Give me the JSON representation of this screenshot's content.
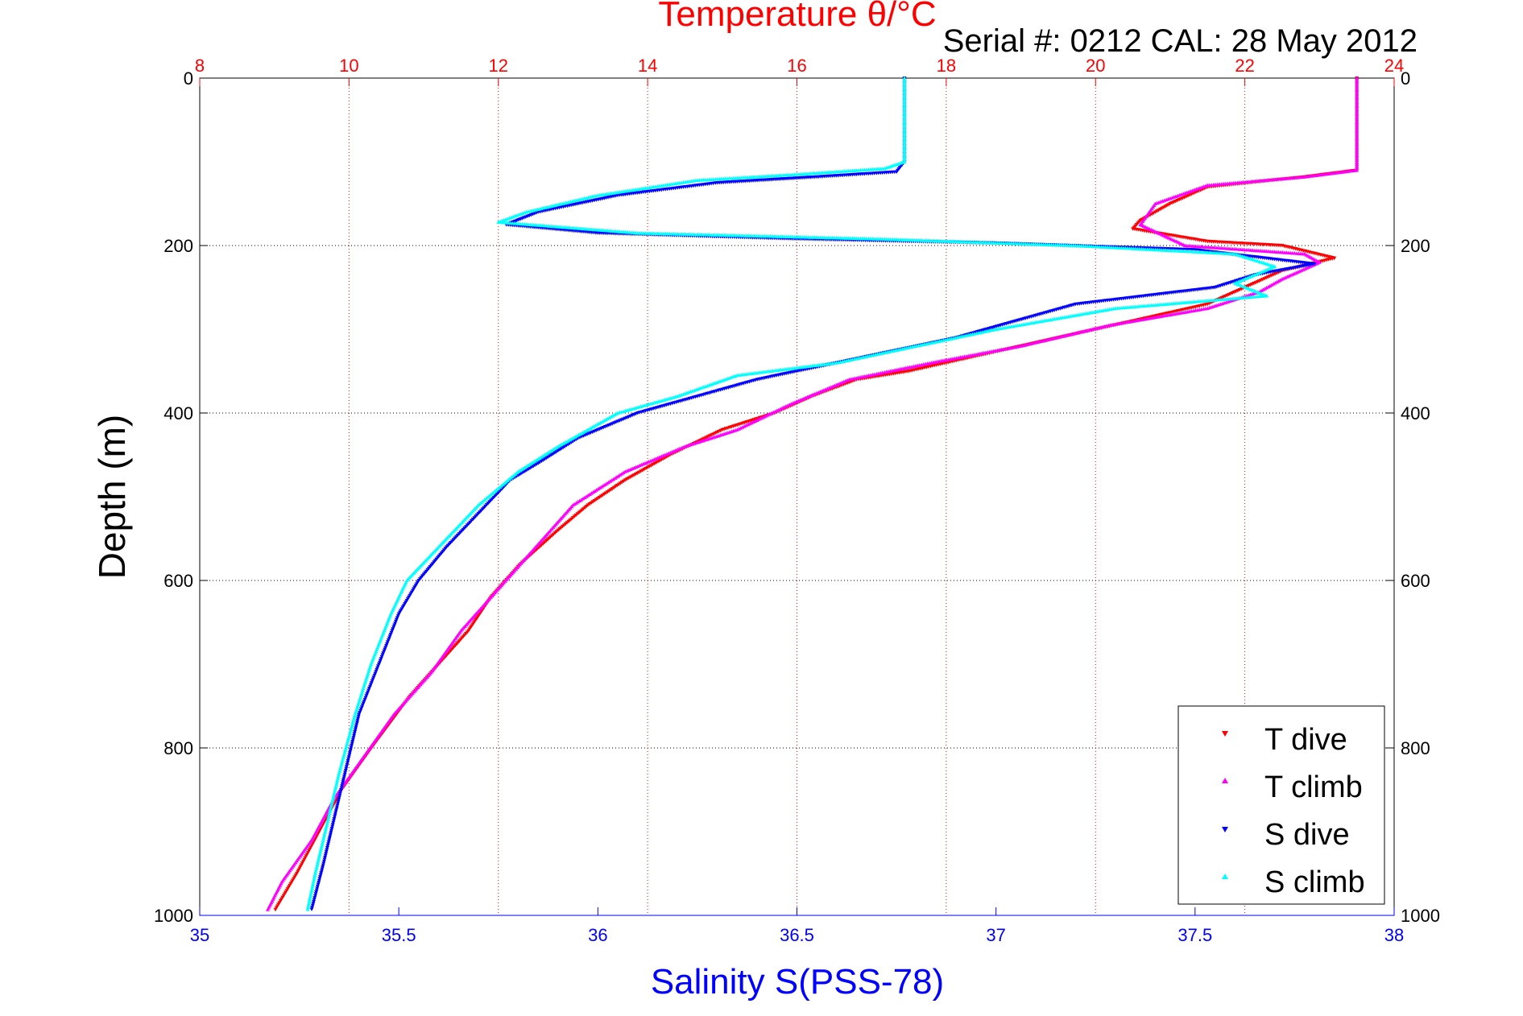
{
  "chart_data": {
    "type": "scatter",
    "title": "Temperature θ/°C",
    "subtitle": "Serial #: 0212  CAL: 28 May 2012",
    "ylabel": "Depth (m)",
    "xlabel_bottom": "Salinity S(PSS-78)",
    "ylim": [
      1000,
      0
    ],
    "x_top_lim": [
      8,
      24
    ],
    "x_bottom_lim": [
      35,
      38
    ],
    "y_ticks": [
      "0",
      "200",
      "400",
      "600",
      "800",
      "1000"
    ],
    "x_top_ticks": [
      "8",
      "10",
      "12",
      "14",
      "16",
      "18",
      "20",
      "22",
      "24"
    ],
    "x_bottom_ticks": [
      "35",
      "35.5",
      "36",
      "36.5",
      "37",
      "37.5",
      "38"
    ],
    "grid": true,
    "legend_position": "bottom-right",
    "colors": {
      "temperature_axis": "#ff0000",
      "salinity_axis": "#0000ff",
      "t_dive": "#ff0000",
      "t_climb": "#ff00ff",
      "s_dive": "#0000ff",
      "s_climb": "#00ffff"
    },
    "series": [
      {
        "name": "T dive",
        "axis": "temperature",
        "marker": "triangle-down",
        "color": "#ff0000",
        "points": [
          [
            23.5,
            0
          ],
          [
            23.5,
            50
          ],
          [
            23.5,
            110
          ],
          [
            22.8,
            118
          ],
          [
            21.5,
            130
          ],
          [
            21.0,
            150
          ],
          [
            20.6,
            170
          ],
          [
            20.5,
            180
          ],
          [
            21.5,
            195
          ],
          [
            22.5,
            200
          ],
          [
            23.2,
            215
          ],
          [
            22.5,
            230
          ],
          [
            22.0,
            250
          ],
          [
            21.5,
            270
          ],
          [
            20.5,
            290
          ],
          [
            19.5,
            310
          ],
          [
            18.5,
            330
          ],
          [
            17.5,
            350
          ],
          [
            16.8,
            360
          ],
          [
            16.2,
            380
          ],
          [
            15.7,
            400
          ],
          [
            15.0,
            420
          ],
          [
            14.3,
            450
          ],
          [
            13.7,
            480
          ],
          [
            13.2,
            510
          ],
          [
            12.8,
            540
          ],
          [
            12.3,
            580
          ],
          [
            11.9,
            620
          ],
          [
            11.6,
            660
          ],
          [
            11.2,
            700
          ],
          [
            10.8,
            740
          ],
          [
            10.3,
            800
          ],
          [
            9.9,
            850
          ],
          [
            9.6,
            900
          ],
          [
            9.3,
            950
          ],
          [
            9.0,
            995
          ]
        ]
      },
      {
        "name": "T climb",
        "axis": "temperature",
        "marker": "triangle-up",
        "color": "#ff00ff",
        "points": [
          [
            23.5,
            0
          ],
          [
            23.5,
            50
          ],
          [
            23.5,
            110
          ],
          [
            22.8,
            118
          ],
          [
            21.5,
            128
          ],
          [
            20.8,
            150
          ],
          [
            20.6,
            175
          ],
          [
            21.2,
            200
          ],
          [
            22.8,
            210
          ],
          [
            23.0,
            220
          ],
          [
            22.5,
            240
          ],
          [
            22.2,
            255
          ],
          [
            21.5,
            275
          ],
          [
            20.2,
            295
          ],
          [
            19.0,
            320
          ],
          [
            17.8,
            340
          ],
          [
            16.7,
            360
          ],
          [
            15.9,
            390
          ],
          [
            15.2,
            420
          ],
          [
            14.5,
            440
          ],
          [
            13.7,
            470
          ],
          [
            13.0,
            510
          ],
          [
            12.7,
            540
          ],
          [
            12.2,
            590
          ],
          [
            11.9,
            620
          ],
          [
            11.5,
            660
          ],
          [
            11.1,
            710
          ],
          [
            10.6,
            760
          ],
          [
            10.2,
            810
          ],
          [
            9.8,
            860
          ],
          [
            9.5,
            910
          ],
          [
            9.1,
            960
          ],
          [
            8.9,
            995
          ]
        ]
      },
      {
        "name": "S dive",
        "axis": "salinity",
        "marker": "triangle-down",
        "color": "#0000ff",
        "points": [
          [
            36.77,
            0
          ],
          [
            36.77,
            50
          ],
          [
            36.77,
            100
          ],
          [
            36.75,
            112
          ],
          [
            36.55,
            118
          ],
          [
            36.3,
            125
          ],
          [
            36.05,
            140
          ],
          [
            35.85,
            160
          ],
          [
            35.77,
            175
          ],
          [
            36.0,
            185
          ],
          [
            36.5,
            192
          ],
          [
            37.0,
            197
          ],
          [
            37.5,
            205
          ],
          [
            37.8,
            222
          ],
          [
            37.65,
            235
          ],
          [
            37.55,
            250
          ],
          [
            37.2,
            270
          ],
          [
            36.9,
            310
          ],
          [
            36.6,
            340
          ],
          [
            36.4,
            360
          ],
          [
            36.25,
            380
          ],
          [
            36.1,
            400
          ],
          [
            35.95,
            430
          ],
          [
            35.85,
            460
          ],
          [
            35.78,
            480
          ],
          [
            35.7,
            520
          ],
          [
            35.62,
            560
          ],
          [
            35.55,
            600
          ],
          [
            35.5,
            640
          ],
          [
            35.45,
            700
          ],
          [
            35.4,
            760
          ],
          [
            35.37,
            820
          ],
          [
            35.34,
            880
          ],
          [
            35.31,
            940
          ],
          [
            35.28,
            995
          ]
        ]
      },
      {
        "name": "S climb",
        "axis": "salinity",
        "marker": "triangle-up",
        "color": "#00ffff",
        "points": [
          [
            36.77,
            0
          ],
          [
            36.77,
            50
          ],
          [
            36.77,
            100
          ],
          [
            36.72,
            108
          ],
          [
            36.5,
            115
          ],
          [
            36.25,
            122
          ],
          [
            36.0,
            140
          ],
          [
            35.82,
            160
          ],
          [
            35.75,
            172
          ],
          [
            36.1,
            185
          ],
          [
            36.7,
            192
          ],
          [
            37.2,
            200
          ],
          [
            37.6,
            210
          ],
          [
            37.7,
            225
          ],
          [
            37.6,
            245
          ],
          [
            37.68,
            260
          ],
          [
            37.3,
            275
          ],
          [
            37.0,
            300
          ],
          [
            36.8,
            320
          ],
          [
            36.6,
            340
          ],
          [
            36.35,
            355
          ],
          [
            36.2,
            380
          ],
          [
            36.05,
            400
          ],
          [
            35.9,
            440
          ],
          [
            35.8,
            470
          ],
          [
            35.7,
            510
          ],
          [
            35.6,
            560
          ],
          [
            35.52,
            600
          ],
          [
            35.48,
            640
          ],
          [
            35.43,
            700
          ],
          [
            35.39,
            760
          ],
          [
            35.35,
            830
          ],
          [
            35.32,
            890
          ],
          [
            35.29,
            950
          ],
          [
            35.27,
            995
          ]
        ]
      }
    ]
  }
}
